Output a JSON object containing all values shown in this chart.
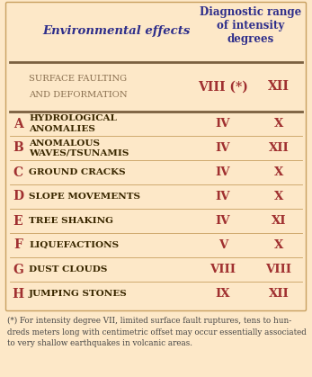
{
  "bg_color": "#fde8c8",
  "outer_bg": "#fde8c8",
  "header_color": "#2e2e8b",
  "letter_color": "#a03030",
  "roman_color": "#a03030",
  "effect_color": "#3a2800",
  "surface_color": "#8a7050",
  "surface_min": "VIII (*)",
  "surface_max": "XII",
  "rows": [
    {
      "letter": "A",
      "effect": "HYDROLOGICAL\nANOMALIES",
      "min": "IV",
      "max": "X"
    },
    {
      "letter": "B",
      "effect": "ANOMALOUS\nWAVES/TSUNAMIS",
      "min": "IV",
      "max": "XII"
    },
    {
      "letter": "C",
      "effect": "GROUND CRACKS",
      "min": "IV",
      "max": "X"
    },
    {
      "letter": "D",
      "effect": "SLOPE MOVEMENTS",
      "min": "IV",
      "max": "X"
    },
    {
      "letter": "E",
      "effect": "TREE SHAKING",
      "min": "IV",
      "max": "XI"
    },
    {
      "letter": "F",
      "effect": "LIQUEFACTIONS",
      "min": "V",
      "max": "X"
    },
    {
      "letter": "G",
      "effect": "DUST CLOUDS",
      "min": "VIII",
      "max": "VIII"
    },
    {
      "letter": "H",
      "effect": "JUMPING STONES",
      "min": "IX",
      "max": "XII"
    }
  ],
  "footnote": "(*) For intensity degree VII, limited surface fault ruptures, tens to hun-\ndreds meters long with centimetric offset may occur essentially associated\nto very shallow earthquakes in volcanic areas.",
  "footnote_color": "#444444",
  "divider_color": "#7a6040",
  "border_color": "#c8a060"
}
